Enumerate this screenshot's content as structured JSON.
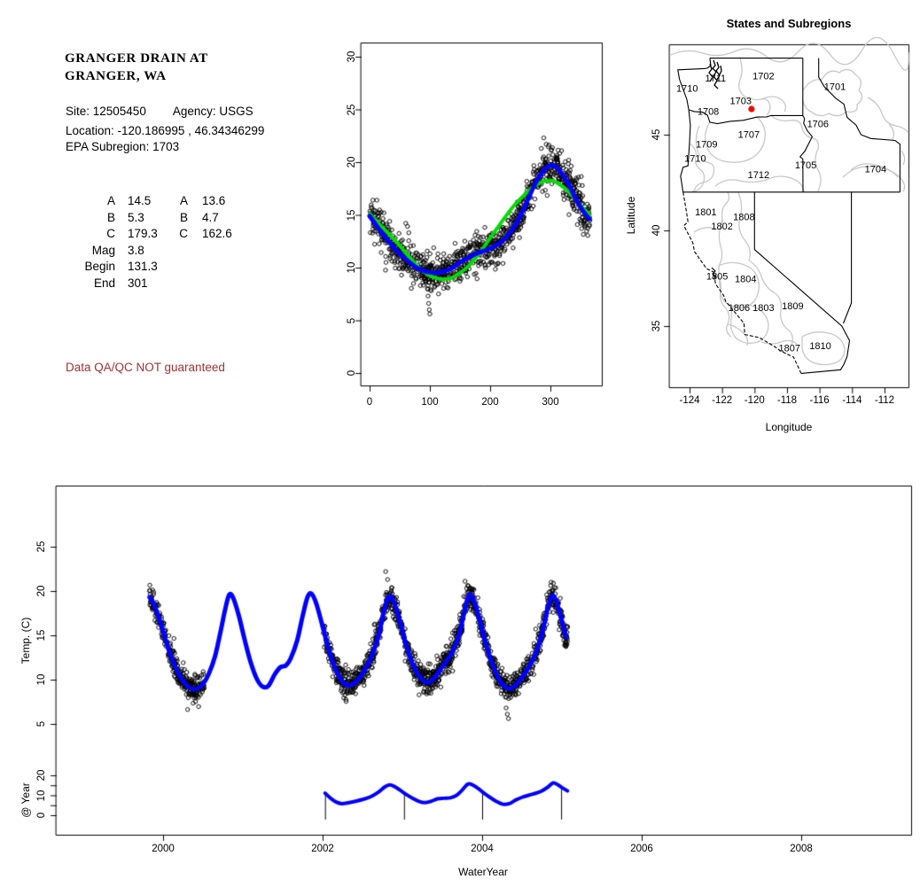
{
  "info": {
    "station_title_line1": "GRANGER DRAIN AT",
    "station_title_line2": "GRANGER, WA",
    "site_line_left": "Site: 12505450",
    "site_line_right": "Agency: USGS",
    "location_line": "Location: -120.186995 , 46.34346299",
    "subregion_line": "EPA Subregion: 1703",
    "params": {
      "col1": [
        {
          "label": "A",
          "value": "14.5"
        },
        {
          "label": "B",
          "value": "5.3"
        },
        {
          "label": "C",
          "value": "179.3"
        },
        {
          "label": "Mag",
          "value": "3.8"
        },
        {
          "label": "Begin",
          "value": "131.3"
        },
        {
          "label": "End",
          "value": "301"
        }
      ],
      "col2": [
        {
          "label": "A",
          "value": "13.6"
        },
        {
          "label": "B",
          "value": "4.7"
        },
        {
          "label": "C",
          "value": "162.6"
        }
      ]
    },
    "qaqc_notice": "Data QA/QC NOT guaranteed",
    "qaqc_color": "#9E3232"
  },
  "map": {
    "title": "States and Subregions",
    "xlabel": "Longitude",
    "ylabel": "Latitude",
    "xticks": [
      -124,
      -122,
      -120,
      -118,
      -116,
      -114,
      -112
    ],
    "yticks": [
      35,
      40,
      45
    ],
    "state_border_color": "#000000",
    "subregion_border_color": "#C8C8C8",
    "site_marker": {
      "lon": -120.187,
      "lat": 46.343,
      "color": "#FF0000"
    },
    "region_labels": [
      {
        "id": "1702",
        "lon": -119.45,
        "lat": 48.05
      },
      {
        "id": "1711",
        "lon": -122.4,
        "lat": 47.95
      },
      {
        "id": "1710",
        "lon": -124.15,
        "lat": 47.4
      },
      {
        "id": "1701",
        "lon": -115.05,
        "lat": 47.5
      },
      {
        "id": "1703",
        "lon": -120.85,
        "lat": 46.75
      },
      {
        "id": "1708",
        "lon": -122.85,
        "lat": 46.2
      },
      {
        "id": "1706",
        "lon": -116.1,
        "lat": 45.55
      },
      {
        "id": "1707",
        "lon": -120.35,
        "lat": 45.0
      },
      {
        "id": "1709",
        "lon": -122.95,
        "lat": 44.5
      },
      {
        "id": "1710",
        "lon": -123.65,
        "lat": 43.75
      },
      {
        "id": "1705",
        "lon": -116.85,
        "lat": 43.4
      },
      {
        "id": "1704",
        "lon": -112.55,
        "lat": 43.2
      },
      {
        "id": "1712",
        "lon": -119.75,
        "lat": 42.9
      },
      {
        "id": "1801",
        "lon": -123.0,
        "lat": 40.95
      },
      {
        "id": "1808",
        "lon": -120.65,
        "lat": 40.7
      },
      {
        "id": "1802",
        "lon": -122.0,
        "lat": 40.2
      },
      {
        "id": "1805",
        "lon": -122.3,
        "lat": 37.6
      },
      {
        "id": "1804",
        "lon": -120.55,
        "lat": 37.45
      },
      {
        "id": "1806",
        "lon": -120.95,
        "lat": 35.95
      },
      {
        "id": "1803",
        "lon": -119.45,
        "lat": 35.95
      },
      {
        "id": "1809",
        "lon": -117.65,
        "lat": 36.05
      },
      {
        "id": "1807",
        "lon": -117.85,
        "lat": 33.85
      },
      {
        "id": "1810",
        "lon": -115.95,
        "lat": 33.95
      }
    ]
  },
  "chart_data": [
    {
      "id": "seasonal-fit",
      "type": "scatter",
      "title": "",
      "xlabel": "",
      "ylabel": "",
      "xlim": [
        -14,
        385
      ],
      "ylim": [
        -1.2,
        31.3
      ],
      "xticks": [
        0,
        100,
        200,
        300
      ],
      "yticks": [
        0,
        5,
        10,
        15,
        20,
        25,
        30
      ],
      "grid": false,
      "series": [
        {
          "name": "daily water temperature vs day of year",
          "type": "scatter",
          "marker": "open-circle",
          "color": "#000000",
          "generated": {
            "seed": 20,
            "day_min": 1,
            "day_max": 365,
            "sigma": 0.85,
            "base_curve": "seasonal smooth"
          },
          "outliers": [
            [
              96,
              8.0
            ],
            [
              97,
              7.3
            ],
            [
              98,
              6.6
            ],
            [
              99,
              6.0
            ],
            [
              100,
              5.6
            ],
            [
              60,
              14.2
            ],
            [
              63,
              13.9
            ],
            [
              65,
              13.3
            ],
            [
              285,
              21.3
            ],
            [
              289,
              22.3
            ],
            [
              293,
              21.7
            ]
          ]
        },
        {
          "name": "sine fit (A=13.6 B=4.7 C=162.6)",
          "type": "line",
          "color": "#00DD00",
          "width": 4,
          "points": [
            [
              0,
              15.1
            ],
            [
              15,
              14.2
            ],
            [
              30,
              13.3
            ],
            [
              45,
              12.4
            ],
            [
              60,
              11.4
            ],
            [
              75,
              10.4
            ],
            [
              90,
              9.6
            ],
            [
              105,
              9.1
            ],
            [
              120,
              8.9
            ],
            [
              135,
              9.0
            ],
            [
              150,
              9.5
            ],
            [
              165,
              10.2
            ],
            [
              180,
              11.2
            ],
            [
              195,
              12.4
            ],
            [
              210,
              13.6
            ],
            [
              225,
              14.8
            ],
            [
              240,
              15.9
            ],
            [
              255,
              16.8
            ],
            [
              270,
              17.6
            ],
            [
              285,
              18.1
            ],
            [
              295,
              18.25
            ],
            [
              305,
              18.2
            ],
            [
              315,
              17.9
            ],
            [
              330,
              17.2
            ],
            [
              345,
              16.2
            ],
            [
              365,
              15.0
            ]
          ]
        },
        {
          "name": "seasonal smooth (A=14.5 B=5.3 C=179.3)",
          "type": "line",
          "color": "#0000FF",
          "width": 5,
          "points": [
            [
              0,
              14.9
            ],
            [
              15,
              13.7
            ],
            [
              30,
              12.6
            ],
            [
              45,
              11.6
            ],
            [
              60,
              10.8
            ],
            [
              75,
              10.1
            ],
            [
              90,
              9.7
            ],
            [
              100,
              9.55
            ],
            [
              110,
              9.5
            ],
            [
              120,
              9.6
            ],
            [
              135,
              9.9
            ],
            [
              150,
              10.5
            ],
            [
              165,
              11.0
            ],
            [
              180,
              11.4
            ],
            [
              195,
              11.7
            ],
            [
              210,
              12.1
            ],
            [
              225,
              12.8
            ],
            [
              240,
              13.9
            ],
            [
              255,
              15.5
            ],
            [
              270,
              17.4
            ],
            [
              280,
              18.5
            ],
            [
              290,
              19.3
            ],
            [
              300,
              19.7
            ],
            [
              308,
              19.6
            ],
            [
              318,
              19.0
            ],
            [
              330,
              17.9
            ],
            [
              342,
              16.5
            ],
            [
              355,
              15.3
            ],
            [
              365,
              14.6
            ]
          ]
        }
      ]
    },
    {
      "id": "timeseries",
      "type": "scatter",
      "xlabel": "WaterYear",
      "ylabel": "Temp. (C)",
      "xlim": [
        1998.62,
        2009.38
      ],
      "xticks": [
        2000,
        2002,
        2004,
        2006,
        2008
      ],
      "yticks": [
        5,
        10,
        15,
        20,
        25
      ],
      "grid": false,
      "series": [
        {
          "name": "observed daily temperature",
          "type": "scatter",
          "marker": "open-circle",
          "color": "#000000",
          "generated": {
            "seed": 77,
            "ranges": [
              [
                1999.83,
                2000.52
              ],
              [
                2002.0,
                2005.08
              ]
            ],
            "sigma": 0.8,
            "base_curve": "seasonal model"
          },
          "outliers": [
            [
              2002.79,
              22.2
            ],
            [
              2002.815,
              21.3
            ],
            [
              2003.785,
              21.1
            ],
            [
              2004.3,
              6.8
            ],
            [
              2004.315,
              6.1
            ],
            [
              2004.33,
              5.6
            ],
            [
              2004.865,
              21.0
            ]
          ]
        },
        {
          "name": "seasonal model",
          "type": "line",
          "color": "#0000FF",
          "width": 5,
          "points": [
            [
              1999.83,
              19.3
            ],
            [
              1999.88,
              18.6
            ],
            [
              1999.95,
              16.9
            ],
            [
              2000.02,
              14.8
            ],
            [
              2000.1,
              12.6
            ],
            [
              2000.18,
              10.9
            ],
            [
              2000.27,
              9.6
            ],
            [
              2000.35,
              9.0
            ],
            [
              2000.43,
              9.0
            ],
            [
              2000.5,
              9.5
            ],
            [
              2000.57,
              10.6
            ],
            [
              2000.65,
              12.6
            ],
            [
              2000.72,
              15.4
            ],
            [
              2000.78,
              18.0
            ],
            [
              2000.83,
              19.6
            ],
            [
              2000.88,
              19.2
            ],
            [
              2000.95,
              17.2
            ],
            [
              2001.02,
              14.6
            ],
            [
              2001.1,
              11.9
            ],
            [
              2001.18,
              10.0
            ],
            [
              2001.25,
              9.2
            ],
            [
              2001.32,
              9.3
            ],
            [
              2001.4,
              10.6
            ],
            [
              2001.47,
              11.4
            ],
            [
              2001.54,
              11.6
            ],
            [
              2001.6,
              12.4
            ],
            [
              2001.68,
              14.4
            ],
            [
              2001.75,
              17.2
            ],
            [
              2001.81,
              19.3
            ],
            [
              2001.86,
              19.7
            ],
            [
              2001.92,
              18.6
            ],
            [
              2002.0,
              16.0
            ],
            [
              2002.07,
              13.6
            ],
            [
              2002.15,
              11.4
            ],
            [
              2002.23,
              10.0
            ],
            [
              2002.3,
              9.4
            ],
            [
              2002.38,
              9.5
            ],
            [
              2002.46,
              10.2
            ],
            [
              2002.54,
              11.3
            ],
            [
              2002.62,
              12.8
            ],
            [
              2002.7,
              15.0
            ],
            [
              2002.77,
              17.8
            ],
            [
              2002.83,
              19.4
            ],
            [
              2002.89,
              18.8
            ],
            [
              2002.96,
              16.8
            ],
            [
              2003.03,
              14.4
            ],
            [
              2003.1,
              12.4
            ],
            [
              2003.18,
              10.8
            ],
            [
              2003.26,
              9.9
            ],
            [
              2003.33,
              9.7
            ],
            [
              2003.4,
              10.2
            ],
            [
              2003.48,
              11.2
            ],
            [
              2003.56,
              12.2
            ],
            [
              2003.64,
              13.4
            ],
            [
              2003.72,
              15.4
            ],
            [
              2003.79,
              18.2
            ],
            [
              2003.84,
              19.6
            ],
            [
              2003.9,
              18.8
            ],
            [
              2003.97,
              16.6
            ],
            [
              2004.04,
              14.2
            ],
            [
              2004.12,
              11.9
            ],
            [
              2004.2,
              10.2
            ],
            [
              2004.28,
              9.2
            ],
            [
              2004.36,
              9.0
            ],
            [
              2004.44,
              9.6
            ],
            [
              2004.52,
              10.5
            ],
            [
              2004.6,
              11.7
            ],
            [
              2004.68,
              13.2
            ],
            [
              2004.76,
              15.6
            ],
            [
              2004.83,
              18.4
            ],
            [
              2004.88,
              19.5
            ],
            [
              2004.93,
              18.8
            ],
            [
              2004.99,
              16.9
            ],
            [
              2005.05,
              14.8
            ]
          ]
        }
      ]
    },
    {
      "id": "amplitude-strip",
      "type": "line",
      "ylabel": "@ Year",
      "ytick_marks": [
        0,
        5,
        10,
        15,
        20
      ],
      "ytick_labels": [
        0,
        10,
        20
      ],
      "marker_years": [
        2002.03,
        2003.02,
        2004.0,
        2004.99
      ],
      "series": [
        {
          "name": "within-year seasonal signal",
          "type": "line",
          "color": "#0000FF",
          "width": 4,
          "points": [
            [
              2002.03,
              11.1
            ],
            [
              2002.1,
              8.5
            ],
            [
              2002.17,
              6.6
            ],
            [
              2002.24,
              5.8
            ],
            [
              2002.32,
              6.2
            ],
            [
              2002.4,
              6.9
            ],
            [
              2002.5,
              7.9
            ],
            [
              2002.6,
              9.2
            ],
            [
              2002.7,
              11.6
            ],
            [
              2002.78,
              14.2
            ],
            [
              2002.84,
              15.2
            ],
            [
              2002.9,
              14.4
            ],
            [
              2002.97,
              12.6
            ],
            [
              2003.04,
              10.6
            ],
            [
              2003.12,
              8.7
            ],
            [
              2003.2,
              7.1
            ],
            [
              2003.28,
              6.3
            ],
            [
              2003.36,
              7.0
            ],
            [
              2003.44,
              8.2
            ],
            [
              2003.52,
              8.5
            ],
            [
              2003.6,
              8.7
            ],
            [
              2003.68,
              10.0
            ],
            [
              2003.75,
              12.6
            ],
            [
              2003.82,
              15.6
            ],
            [
              2003.88,
              15.2
            ],
            [
              2003.95,
              13.4
            ],
            [
              2004.02,
              11.2
            ],
            [
              2004.1,
              8.9
            ],
            [
              2004.18,
              6.9
            ],
            [
              2004.26,
              5.5
            ],
            [
              2004.34,
              5.8
            ],
            [
              2004.42,
              7.6
            ],
            [
              2004.5,
              9.0
            ],
            [
              2004.58,
              10.0
            ],
            [
              2004.66,
              10.9
            ],
            [
              2004.74,
              12.0
            ],
            [
              2004.82,
              14.0
            ],
            [
              2004.89,
              16.2
            ],
            [
              2004.95,
              15.2
            ],
            [
              2005.01,
              13.6
            ],
            [
              2005.07,
              12.2
            ]
          ]
        }
      ]
    }
  ]
}
